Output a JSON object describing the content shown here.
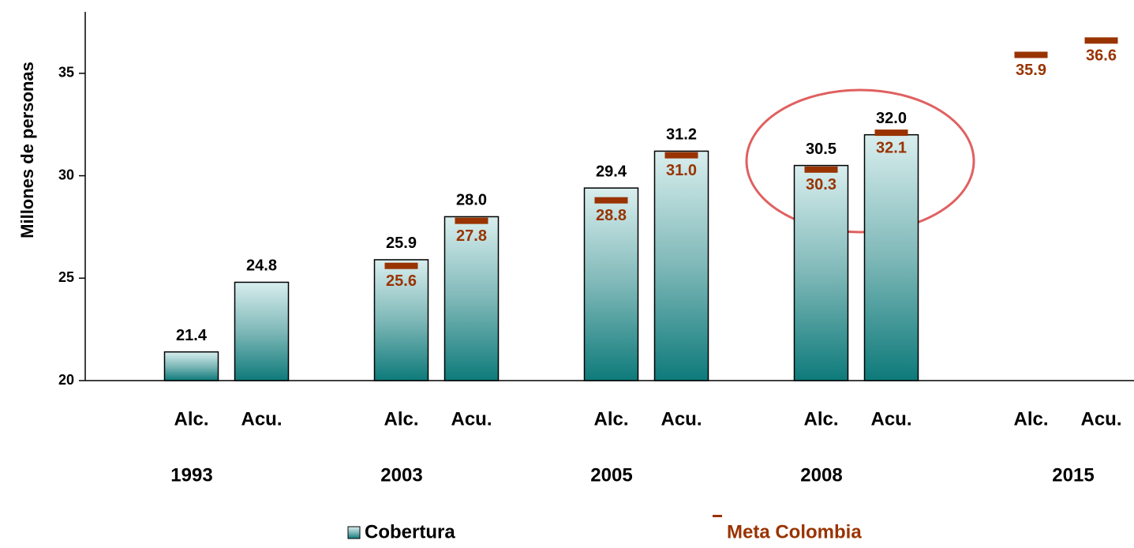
{
  "chart_data": {
    "type": "bar",
    "y_label": "Millones de personas",
    "categories": [
      "Alc.",
      "Acu.",
      "Alc.",
      "Acu.",
      "Alc.",
      "Acu.",
      "Alc.",
      "Acu.",
      "Alc.",
      "Acu."
    ],
    "groups": [
      "1993",
      "2003",
      "2005",
      "2008",
      "2015"
    ],
    "series": [
      {
        "name": "Cobertura",
        "color": "#117c7c",
        "values": [
          21.4,
          24.8,
          25.9,
          28.0,
          29.4,
          31.2,
          30.5,
          32.0,
          null,
          null
        ],
        "value_labels": [
          "21.4",
          "24.8",
          "25.9",
          "28.0",
          "29.4",
          "31.2",
          "30.5",
          "32.0",
          null,
          null
        ]
      },
      {
        "name": "Meta Colombia",
        "color": "#993300",
        "values": [
          null,
          null,
          25.6,
          27.8,
          28.8,
          31.0,
          30.3,
          32.1,
          35.9,
          36.6
        ],
        "value_labels": [
          null,
          null,
          "25.6",
          "27.8",
          "28.8",
          "31.0",
          "30.3",
          "32.1",
          "35.9",
          "36.6"
        ]
      }
    ],
    "ylim": [
      20,
      38
    ],
    "yticks": [
      20,
      25,
      30,
      35
    ]
  }
}
